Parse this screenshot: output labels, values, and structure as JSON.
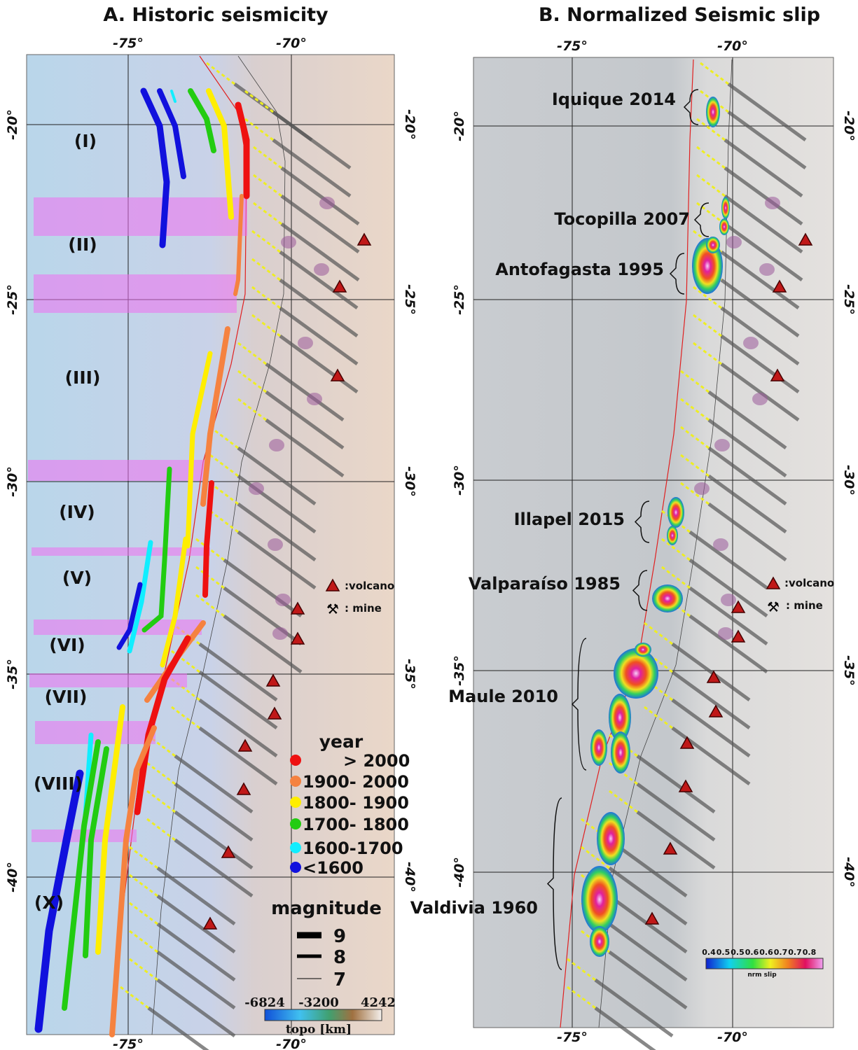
{
  "panel_a": {
    "title": "A. Historic seismicity",
    "lon_top": [
      "-75°",
      "-70°"
    ],
    "lon_bottom": [
      "-75°",
      "-70°"
    ],
    "lat_left": [
      "-20°",
      "-25°",
      "-30°",
      "-35°",
      "-40°"
    ],
    "lat_right": [
      "-20°",
      "-25°",
      "-30°",
      "-35°",
      "-40°"
    ],
    "regions": [
      "(I)",
      "(II)",
      "(III)",
      "(IV)",
      "(V)",
      "(VI)",
      "(VII)",
      "(VIII)",
      "(X)"
    ],
    "legend": {
      "year_title": "year",
      "year_classes": [
        {
          "label": "> 2000",
          "color": "#ee1111"
        },
        {
          "label": "1900- 2000",
          "color": "#f58240"
        },
        {
          "label": "1800- 1900",
          "color": "#ffee00"
        },
        {
          "label": "1700- 1800",
          "color": "#22cc11"
        },
        {
          "label": "1600-1700",
          "color": "#11eeff"
        },
        {
          "label": "<1600",
          "color": "#1111dd"
        }
      ],
      "magnitude_title": "magnitude",
      "magnitudes": [
        "9",
        "8",
        "7"
      ],
      "volcano": ":volcano",
      "mine": ": mine"
    },
    "topo": {
      "labels": [
        "-6824",
        "-3200",
        "4242"
      ],
      "title": "topo [km]"
    }
  },
  "panel_b": {
    "title": "B. Normalized Seismic slip",
    "lon_top": [
      "-75°",
      "-70°"
    ],
    "lon_bottom": [
      "-75°",
      "-70°"
    ],
    "lat_left": [
      "-20°",
      "-25°",
      "-30°",
      "-35°",
      "-40°"
    ],
    "lat_right": [
      "-20°",
      "-25°",
      "-30°",
      "-35°",
      "-40°"
    ],
    "events": [
      "Iquique 2014",
      "Tocopilla 2007",
      "Antofagasta 1995",
      "Illapel 2015",
      "Valparaíso 1985",
      "Maule 2010",
      "Valdivia 1960"
    ],
    "legend": {
      "volcano": ":volcano",
      "mine": ": mine"
    },
    "slip_scale": {
      "labels": [
        "0.4",
        "0.5",
        "0.5",
        "0.6",
        "0.6",
        "0.7",
        "0.7",
        "0.8"
      ],
      "title": "nrm slip"
    }
  }
}
